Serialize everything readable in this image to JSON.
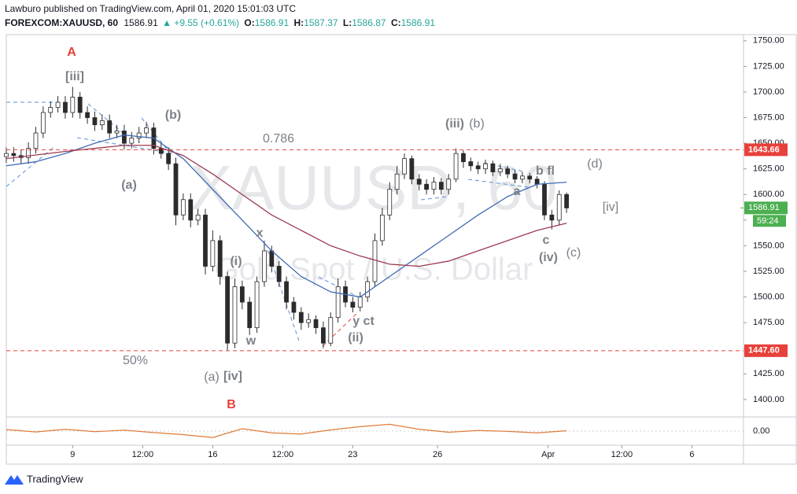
{
  "header": {
    "publisher": "Lawburo published on TradingView.com, April 01, 2020 15:01:03 UTC",
    "symbol": "FOREXCOM:XAUUSD, 60",
    "last": "1586.91",
    "change": "▲ +9.55 (+0.61%)",
    "ohlc": [
      {
        "label": "O:",
        "value": "1586.91"
      },
      {
        "label": "H:",
        "value": "1587.37"
      },
      {
        "label": "L:",
        "value": "1586.87"
      },
      {
        "label": "C:",
        "value": "1586.91"
      }
    ]
  },
  "chart_data": {
    "type": "candlestick",
    "watermark": "XAUUSD, 60",
    "watermark_subtitle": "Gold Spot / U.S. Dollar",
    "xlim": [
      0,
      100
    ],
    "ylim": [
      1383,
      1756
    ],
    "xticks": [
      {
        "value": 9,
        "label": "9"
      },
      {
        "value": 18.5,
        "label": "12:00"
      },
      {
        "value": 28,
        "label": "16"
      },
      {
        "value": 37.5,
        "label": "12:00"
      },
      {
        "value": 47,
        "label": "23"
      },
      {
        "value": 58.5,
        "label": "26"
      },
      {
        "value": 73.5,
        "label": "Apr"
      },
      {
        "value": 83.5,
        "label": "12:00"
      },
      {
        "value": 93,
        "label": "6"
      }
    ],
    "yticks": [
      {
        "value": 1400,
        "label": "1400.00"
      },
      {
        "value": 1425,
        "label": "1425.00"
      },
      {
        "value": 1450,
        "label": "1450.00"
      },
      {
        "value": 1475,
        "label": "1475.00"
      },
      {
        "value": 1500,
        "label": "1500.00"
      },
      {
        "value": 1525,
        "label": "1525.00"
      },
      {
        "value": 1550,
        "label": "1550.00"
      },
      {
        "value": 1575,
        "label": "1575.00"
      },
      {
        "value": 1600,
        "label": "1600.00"
      },
      {
        "value": 1625,
        "label": "1625.00"
      },
      {
        "value": 1650,
        "label": "1650.00"
      },
      {
        "value": 1675,
        "label": "1675.00"
      },
      {
        "value": 1700,
        "label": "1700.00"
      },
      {
        "value": 1725,
        "label": "1725.00"
      },
      {
        "value": 1750,
        "label": "1750.00"
      }
    ],
    "candle_color": "#2b2b2b",
    "open": [
      1637,
      1640,
      1638,
      1636,
      1645,
      1660,
      1680,
      1685,
      1690,
      1680,
      1695,
      1680,
      1675,
      1668,
      1672,
      1660,
      1662,
      1650,
      1655,
      1660,
      1665,
      1645,
      1640,
      1630,
      1580,
      1595,
      1575,
      1580,
      1530,
      1555,
      1520,
      1455,
      1510,
      1495,
      1470,
      1515,
      1545,
      1530,
      1515,
      1495,
      1485,
      1475,
      1478,
      1470,
      1455,
      1480,
      1510,
      1495,
      1490,
      1500,
      1515,
      1555,
      1580,
      1605,
      1620,
      1635,
      1615,
      1610,
      1605,
      1612,
      1605,
      1615,
      1640,
      1632,
      1628,
      1625,
      1630,
      1622,
      1625,
      1620,
      1615,
      1618,
      1615,
      1610,
      1580,
      1575,
      1600
    ],
    "high": [
      1646,
      1646,
      1644,
      1651,
      1666,
      1686,
      1691,
      1696,
      1696,
      1705,
      1700,
      1686,
      1681,
      1678,
      1678,
      1668,
      1668,
      1661,
      1666,
      1671,
      1670,
      1651,
      1646,
      1636,
      1601,
      1601,
      1586,
      1586,
      1565,
      1560,
      1525,
      1518,
      1516,
      1500,
      1520,
      1555,
      1550,
      1535,
      1520,
      1500,
      1490,
      1484,
      1482,
      1476,
      1485,
      1518,
      1516,
      1500,
      1505,
      1520,
      1562,
      1587,
      1612,
      1628,
      1640,
      1638,
      1620,
      1615,
      1617,
      1616,
      1620,
      1645,
      1643,
      1636,
      1632,
      1634,
      1633,
      1630,
      1628,
      1624,
      1622,
      1621,
      1618,
      1613,
      1585,
      1604,
      1602
    ],
    "low": [
      1631,
      1632,
      1630,
      1630,
      1640,
      1655,
      1675,
      1680,
      1674,
      1675,
      1674,
      1669,
      1662,
      1663,
      1655,
      1655,
      1644,
      1645,
      1650,
      1655,
      1639,
      1635,
      1624,
      1570,
      1575,
      1568,
      1570,
      1522,
      1525,
      1512,
      1448,
      1450,
      1488,
      1463,
      1465,
      1510,
      1524,
      1510,
      1488,
      1478,
      1468,
      1470,
      1464,
      1450,
      1452,
      1475,
      1490,
      1485,
      1486,
      1495,
      1510,
      1550,
      1575,
      1600,
      1615,
      1610,
      1604,
      1600,
      1600,
      1600,
      1600,
      1612,
      1626,
      1623,
      1620,
      1620,
      1618,
      1618,
      1616,
      1611,
      1611,
      1611,
      1606,
      1575,
      1566,
      1570,
      1582
    ],
    "close": [
      1640,
      1638,
      1636,
      1645,
      1660,
      1680,
      1685,
      1690,
      1680,
      1695,
      1680,
      1675,
      1668,
      1672,
      1660,
      1662,
      1650,
      1655,
      1660,
      1665,
      1645,
      1640,
      1630,
      1580,
      1595,
      1575,
      1580,
      1530,
      1555,
      1520,
      1455,
      1510,
      1495,
      1470,
      1515,
      1545,
      1530,
      1515,
      1495,
      1485,
      1475,
      1478,
      1470,
      1455,
      1480,
      1510,
      1495,
      1490,
      1500,
      1515,
      1555,
      1580,
      1605,
      1620,
      1635,
      1615,
      1610,
      1605,
      1612,
      1605,
      1615,
      1640,
      1632,
      1628,
      1625,
      1630,
      1622,
      1625,
      1620,
      1615,
      1618,
      1615,
      1610,
      1580,
      1575,
      1600,
      1586.91
    ],
    "series": [
      {
        "color": "#3d6bb3",
        "x": [
          0,
          4,
          8,
          12,
          16,
          20,
          24,
          28,
          32,
          36,
          40,
          44,
          48,
          52,
          56,
          60,
          64,
          68,
          72,
          76
        ],
        "values": [
          1628,
          1632,
          1640,
          1650,
          1658,
          1655,
          1635,
          1605,
          1575,
          1545,
          1520,
          1505,
          1500,
          1520,
          1540,
          1560,
          1580,
          1598,
          1610,
          1612
        ]
      },
      {
        "color": "#9c3a52",
        "x": [
          0,
          8,
          16,
          20,
          24,
          28,
          32,
          36,
          40,
          44,
          48,
          52,
          56,
          60,
          64,
          68,
          72,
          76
        ],
        "values": [
          1635,
          1642,
          1648,
          1648,
          1638,
          1620,
          1600,
          1580,
          1565,
          1550,
          1540,
          1532,
          1530,
          1535,
          1545,
          1555,
          1565,
          1572
        ]
      }
    ],
    "levels": [
      {
        "value": 1643.66,
        "label": "1643.66"
      },
      {
        "value": 1447.6,
        "label": "1447.60"
      }
    ],
    "level_color": "#e8403a",
    "last_price": {
      "value": 1586.91,
      "label": "1586.91"
    },
    "countdown": "59:24",
    "last_color": "#4caf50",
    "annotations": [
      "A",
      "[iii]",
      "(b)",
      "(a)",
      "0.786",
      "x",
      "(i)",
      "w",
      "(ii)",
      "y ct",
      "(iii)",
      "(b)",
      "b fl",
      "(d)",
      "a",
      "[iv]",
      "c",
      "(iv)",
      "(c)",
      "50%",
      "(a)",
      "[iv]",
      "B"
    ],
    "oscillator": {
      "ylim": [
        -4,
        4
      ],
      "yticks": [
        {
          "value": 0,
          "label": "0.00"
        }
      ],
      "color": "#e07b39",
      "x": [
        0,
        4,
        8,
        12,
        16,
        20,
        24,
        28,
        32,
        36,
        40,
        44,
        48,
        52,
        56,
        60,
        64,
        68,
        72,
        76
      ],
      "values": [
        0.5,
        -0.3,
        0.6,
        -0.2,
        0.3,
        -0.5,
        -1.2,
        -2.2,
        0.8,
        -0.6,
        -1.0,
        0.4,
        1.5,
        2.3,
        0.6,
        -0.4,
        0.2,
        -0.1,
        -0.6,
        0.1
      ]
    }
  },
  "footer": "TradingView"
}
